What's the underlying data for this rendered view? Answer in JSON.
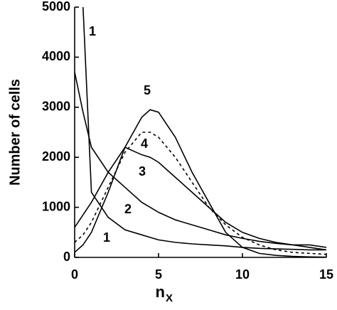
{
  "chart_data": {
    "type": "line",
    "y_label": "Number of cells",
    "x_label": "n",
    "x_label_sub": "X",
    "x": [
      0,
      0.5,
      1,
      2,
      3,
      4,
      4.5,
      5,
      6,
      7,
      8,
      9,
      10,
      11,
      12,
      13,
      14,
      15
    ],
    "series": [
      {
        "name": "1",
        "color": "#000000",
        "dash": false,
        "values": [
          null,
          5000,
          1300,
          800,
          550,
          450,
          400,
          350,
          300,
          270,
          250,
          230,
          200,
          180,
          170,
          160,
          150,
          150
        ]
      },
      {
        "name": "2",
        "color": "#000000",
        "dash": false,
        "values": [
          3700,
          2900,
          2200,
          1700,
          1400,
          1100,
          1000,
          900,
          750,
          650,
          550,
          450,
          380,
          320,
          280,
          250,
          250,
          200
        ]
      },
      {
        "name": "3",
        "color": "#000000",
        "dash": false,
        "values": [
          600,
          850,
          1100,
          1700,
          2200,
          2050,
          2000,
          1900,
          1600,
          1300,
          1000,
          700,
          500,
          380,
          300,
          250,
          200,
          150
        ]
      },
      {
        "name": "4",
        "color": "#000000",
        "dash": true,
        "values": [
          300,
          450,
          700,
          1400,
          2100,
          2500,
          2500,
          2400,
          2000,
          1500,
          1000,
          650,
          400,
          250,
          150,
          100,
          80,
          60
        ]
      },
      {
        "name": "5",
        "color": "#000000",
        "dash": false,
        "values": [
          100,
          250,
          500,
          1300,
          2200,
          2800,
          2950,
          2900,
          2400,
          1700,
          1100,
          500,
          200,
          80,
          40,
          20,
          10,
          5
        ]
      }
    ],
    "xlim": [
      0,
      15
    ],
    "ylim": [
      0,
      5000
    ],
    "xticks": [
      0,
      5,
      10,
      15
    ],
    "yticks": [
      0,
      1000,
      2000,
      3000,
      4000,
      5000
    ]
  }
}
